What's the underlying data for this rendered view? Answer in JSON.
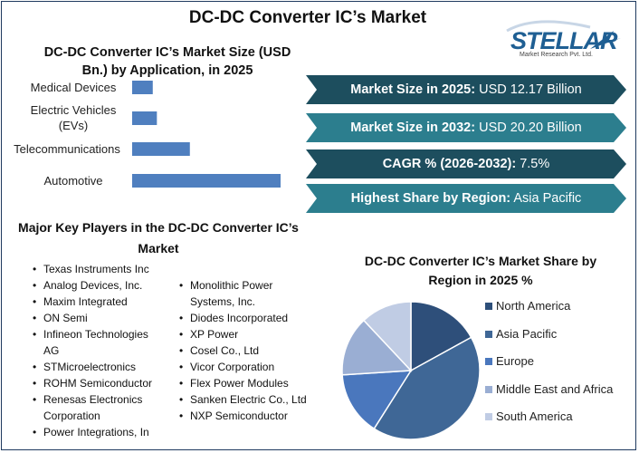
{
  "main_title": "DC-DC Converter IC’s Market",
  "logo": {
    "word": "STELLAR",
    "sub": "Market Research Pvt. Ltd."
  },
  "bar_chart": {
    "title": "DC-DC Converter IC’s Market Size (USD Bn.) by Application, in 2025"
  },
  "chart_data": [
    {
      "type": "bar",
      "orientation": "horizontal",
      "title": "DC-DC Converter IC’s Market Size (USD Bn.) by Application, in 2025",
      "categories": [
        "Medical Devices",
        "Electric Vehicles (EVs)",
        "Telecommunications",
        "Automotive"
      ],
      "values": [
        1.0,
        1.2,
        2.8,
        7.2
      ],
      "color": "#4f7fbf"
    },
    {
      "type": "pie",
      "title": "DC-DC Converter IC’s Market Share by Region in 2025 %",
      "categories": [
        "North America",
        "Asia Pacific",
        "Europe",
        "Middle East and Africa",
        "South America"
      ],
      "values": [
        17,
        42,
        15,
        14,
        12
      ],
      "colors": [
        "#2e4f7a",
        "#3f6796",
        "#4a77bd",
        "#9aaed3",
        "#c0cce4"
      ]
    }
  ],
  "banners": [
    {
      "label": "Market Size in 2025:",
      "value": " USD 12.17 Billion",
      "color": "#1d4e5e"
    },
    {
      "label": "Market Size in 2032:",
      "value": " USD 20.20 Billion",
      "color": "#2c7e8e"
    },
    {
      "label": "CAGR % (2026-2032):",
      "value": " 7.5%",
      "color": "#1d4e5e"
    },
    {
      "label": "Highest Share by Region:",
      "value": " Asia Pacific",
      "color": "#2c7e8e"
    }
  ],
  "players": {
    "title": "Major Key Players in the DC-DC Converter IC’s Market",
    "left": [
      "Texas Instruments Inc",
      "Analog Devices, Inc.",
      "Maxim Integrated",
      "ON Semi",
      "Infineon Technologies AG",
      "STMicroelectronics",
      "ROHM Semiconductor",
      "Renesas Electronics Corporation",
      "Power Integrations, In"
    ],
    "right": [
      "Monolithic Power Systems, Inc.",
      "Diodes Incorporated",
      "XP Power",
      "Cosel Co., Ltd",
      "Vicor Corporation",
      "Flex Power Modules",
      "Sanken Electric Co., Ltd",
      "NXP Semiconductor"
    ]
  }
}
